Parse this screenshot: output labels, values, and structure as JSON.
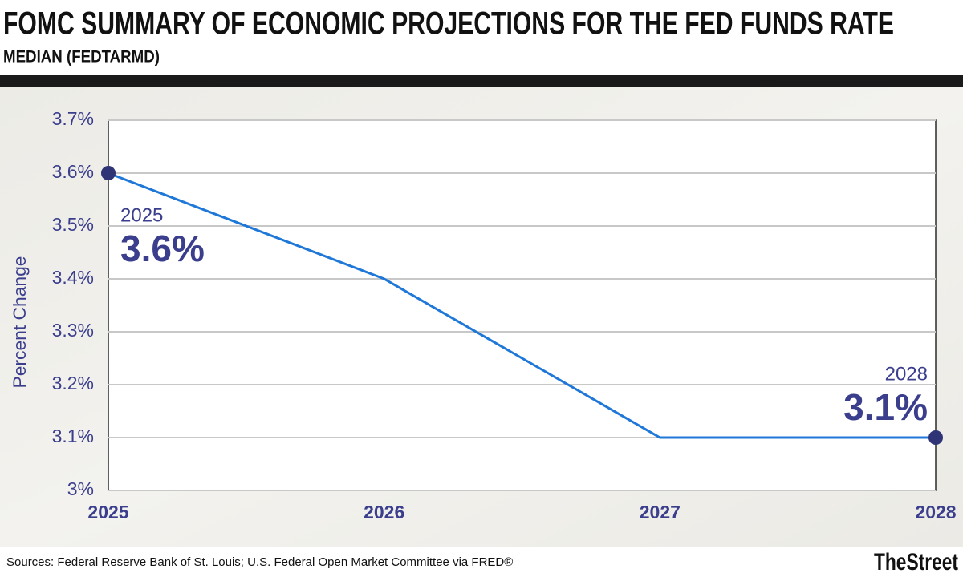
{
  "chart_data": {
    "type": "line",
    "title": "FOMC SUMMARY OF ECONOMIC PROJECTIONS FOR THE FED FUNDS RATE",
    "subtitle": "MEDIAN (FEDTARMD)",
    "y_label": "Percent Change",
    "x": [
      2025,
      2026,
      2027,
      2028
    ],
    "xlim": [
      2025,
      2028
    ],
    "xticks": [
      2025,
      2026,
      2027,
      2028
    ],
    "series": [
      {
        "color": "#1f78d8",
        "values": [
          3.6,
          3.4,
          3.1,
          3.1
        ],
        "value_labels": [
          "3.6%",
          null,
          null,
          "3.1%"
        ]
      }
    ],
    "ylim": [
      3,
      3.7
    ],
    "yticks": [
      {
        "value": 3,
        "label": "3%"
      },
      {
        "value": 3.1,
        "label": "3.1%"
      },
      {
        "value": 3.2,
        "label": "3.2%"
      },
      {
        "value": 3.3,
        "label": "3.3%"
      },
      {
        "value": 3.4,
        "label": "3.4%"
      },
      {
        "value": 3.5,
        "label": "3.5%"
      },
      {
        "value": 3.6,
        "label": "3.6%"
      },
      {
        "value": 3.7,
        "label": "3.7%"
      }
    ],
    "grid": true,
    "source": "Sources: Federal Reserve Bank of St. Louis; U.S. Federal Open Market Committee via FRED®",
    "brand": "TheStreet"
  }
}
